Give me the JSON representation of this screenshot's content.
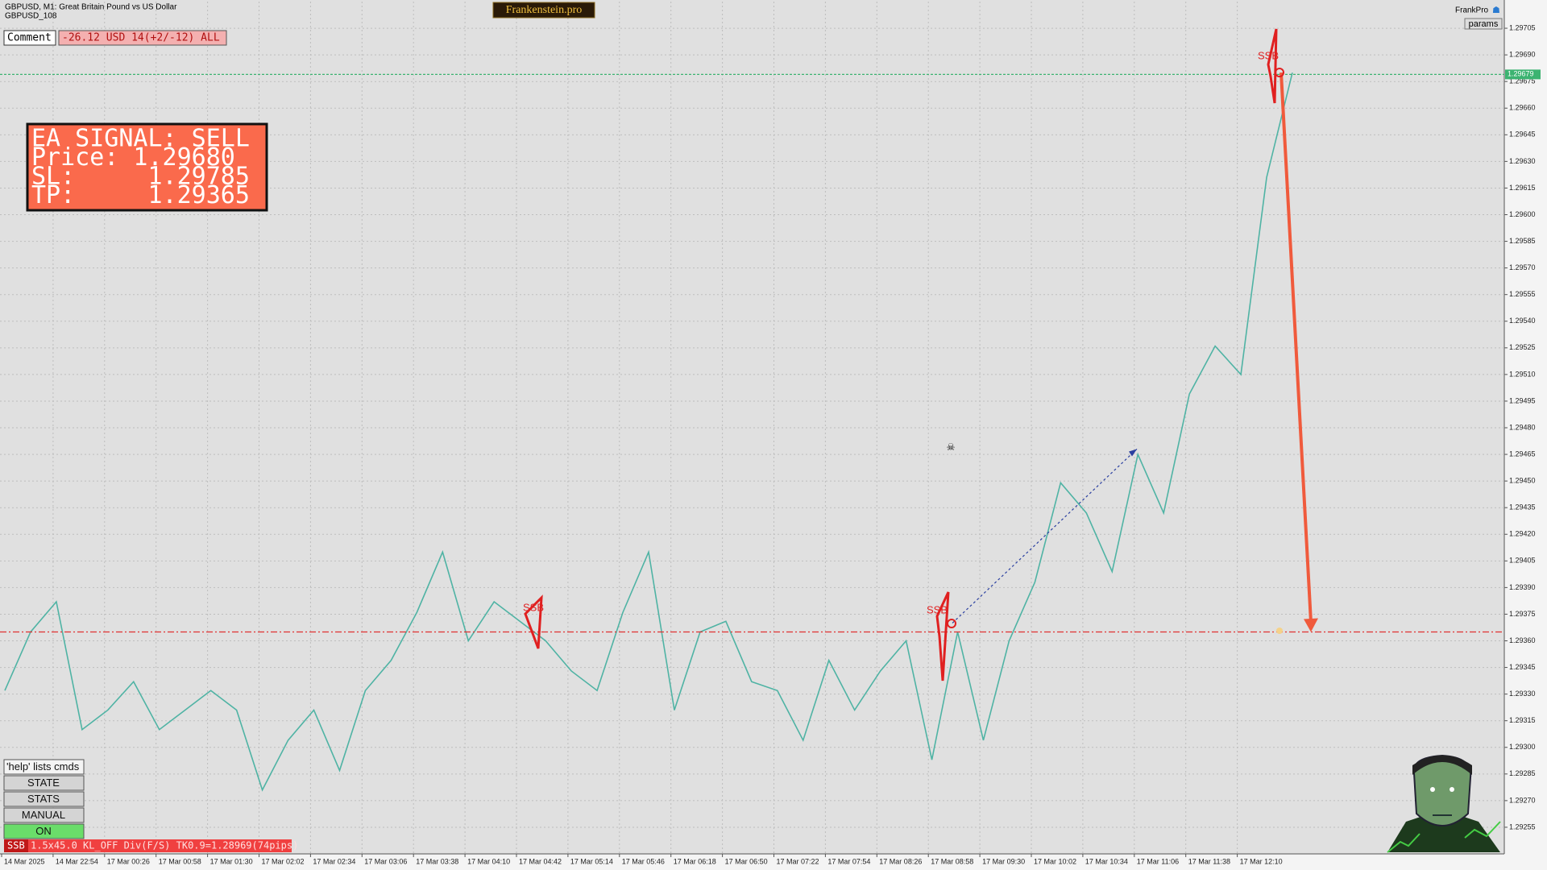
{
  "header": {
    "symbol": "GBPUSD, M1:  Great Britain Pound vs US Dollar",
    "account": "GBPUSD_108",
    "brand": "Frankenstein.pro",
    "user": "FrankPro",
    "params": "params"
  },
  "comment": {
    "label": "Comment",
    "text": "-26.12 USD 14(+2/-12) ALL"
  },
  "signal": {
    "lines": [
      "EA SIGNAL: SELL",
      "Price: 1.29680",
      "SL:     1.29785",
      "TP:     1.29365"
    ]
  },
  "buttons": [
    "'help' lists cmds",
    "STATE",
    "STATS",
    "MANUAL",
    "ON"
  ],
  "status": {
    "tag": "SSB",
    "text": "1.5x45.0 KL_OFF Div(F/S) TK0.9=1.28969(74pips)"
  },
  "markers": [
    "SSB",
    "SSB",
    "SSB"
  ],
  "chart_data": {
    "type": "line",
    "color": "#4fb3a4",
    "values": [
      1.29332,
      1.29365,
      1.29382,
      1.2931,
      1.29321,
      1.29337,
      1.2931,
      1.29321,
      1.29332,
      1.29321,
      1.29276,
      1.29304,
      1.29321,
      1.29287,
      1.29332,
      1.29349,
      1.29376,
      1.2941,
      1.2936,
      1.29382,
      1.29371,
      1.2936,
      1.29343,
      1.29332,
      1.29376,
      1.2941,
      1.29321,
      1.29365,
      1.29371,
      1.29337,
      1.29332,
      1.29304,
      1.29349,
      1.29321,
      1.29343,
      1.2936,
      1.29293,
      1.29365,
      1.29304,
      1.2936,
      1.29393,
      1.29449,
      1.29432,
      1.29399,
      1.29465,
      1.29432,
      1.29499,
      1.29526,
      1.2951,
      1.29621,
      1.2968
    ],
    "xtick_labels": [
      "14 Mar 2025",
      "14 Mar 22:54",
      "17 Mar 00:26",
      "17 Mar 00:58",
      "17 Mar 01:30",
      "17 Mar 02:02",
      "17 Mar 02:34",
      "17 Mar 03:06",
      "17 Mar 03:38",
      "17 Mar 04:10",
      "17 Mar 04:42",
      "17 Mar 05:14",
      "17 Mar 05:46",
      "17 Mar 06:18",
      "17 Mar 06:50",
      "17 Mar 07:22",
      "17 Mar 07:54",
      "17 Mar 08:26",
      "17 Mar 08:58",
      "17 Mar 09:30",
      "17 Mar 10:02",
      "17 Mar 10:34",
      "17 Mar 11:06",
      "17 Mar 11:38",
      "17 Mar 12:10"
    ],
    "ylim": [
      1.2924,
      1.2972
    ],
    "yticks": [
      1.29255,
      {
        "value": 1.2927,
        "label": "1.29270"
      },
      1.29285,
      {
        "value": 1.293,
        "label": "1.29300"
      },
      1.29315,
      {
        "value": 1.2933,
        "label": "1.29330"
      },
      1.29345,
      {
        "value": 1.2936,
        "label": "1.29360"
      },
      1.29375,
      {
        "value": 1.2939,
        "label": "1.29390"
      },
      1.29405,
      {
        "value": 1.2942,
        "label": "1.29420"
      },
      1.29435,
      {
        "value": 1.2945,
        "label": "1.29450"
      },
      1.29465,
      {
        "value": 1.2948,
        "label": "1.29480"
      },
      1.29495,
      {
        "value": 1.2951,
        "label": "1.29510"
      },
      1.29525,
      {
        "value": 1.2954,
        "label": "1.29540"
      },
      1.29555,
      {
        "value": 1.2957,
        "label": "1.29570"
      },
      1.29585,
      {
        "value": 1.296,
        "label": "1.29600"
      },
      1.29615,
      {
        "value": 1.2963,
        "label": "1.29630"
      },
      1.29645,
      {
        "value": 1.2966,
        "label": "1.29660"
      },
      1.29675,
      {
        "value": 1.2969,
        "label": "1.29690"
      },
      1.29705
    ],
    "grid": true,
    "hlines": [
      {
        "value": 1.29679,
        "color": "#3cb371"
      },
      {
        "value": 1.29365,
        "color": "#e03030"
      }
    ],
    "signal_arrow": {
      "from": 1.2968,
      "to": 1.29365,
      "color": "#f05a3c"
    },
    "trade_line": {
      "from": 1.2937,
      "to": 1.29468,
      "color": "#2a3fa0"
    }
  }
}
